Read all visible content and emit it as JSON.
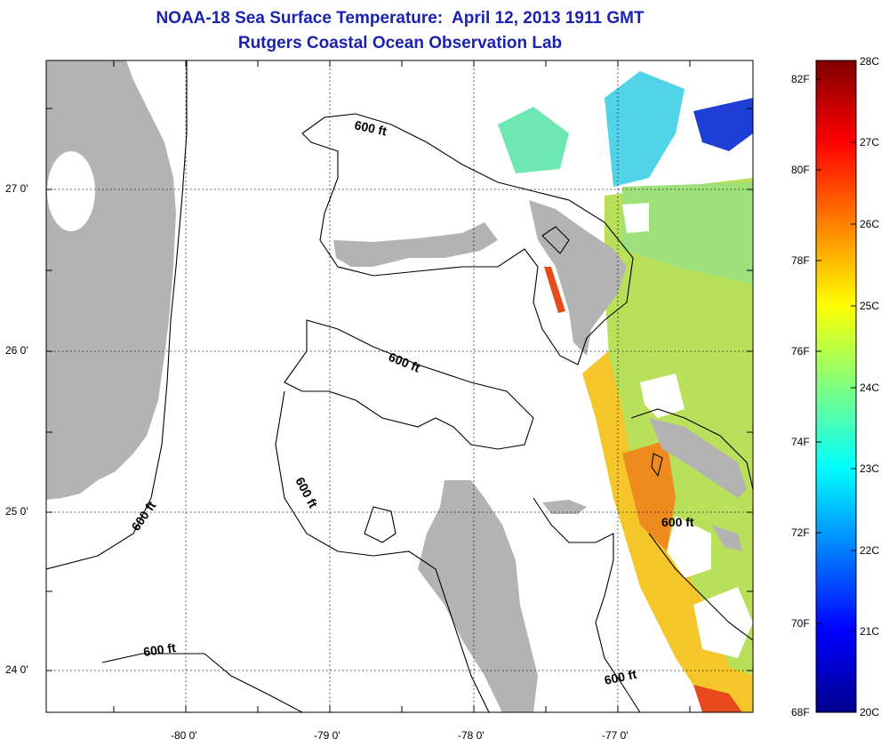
{
  "title": {
    "line1": "NOAA-18 Sea Surface Temperature:  April 12, 2013 1911 GMT",
    "line2": "Rutgers Coastal Ocean Observation Lab"
  },
  "map": {
    "lon_labels": [
      "-80 0'",
      "-79 0'",
      "-78 0'",
      "-77 0'"
    ],
    "lat_labels": [
      "27 0'",
      "26 0'",
      "25 0'",
      "24 0'"
    ],
    "contour_label": "600 ft",
    "colors": {
      "land": "#b3b3b3",
      "contour": "#000000",
      "grid": "#000000",
      "cloud_mask": "#ffffff"
    }
  },
  "colorbar": {
    "left_labels": [
      "82F",
      "80F",
      "78F",
      "76F",
      "74F",
      "72F",
      "70F",
      "68F"
    ],
    "right_labels": [
      "28C",
      "27C",
      "26C",
      "25C",
      "24C",
      "23C",
      "22C",
      "21C",
      "20C"
    ],
    "range_c": [
      20,
      28
    ],
    "range_f": [
      68,
      82.4
    ],
    "colormap": "jet"
  }
}
